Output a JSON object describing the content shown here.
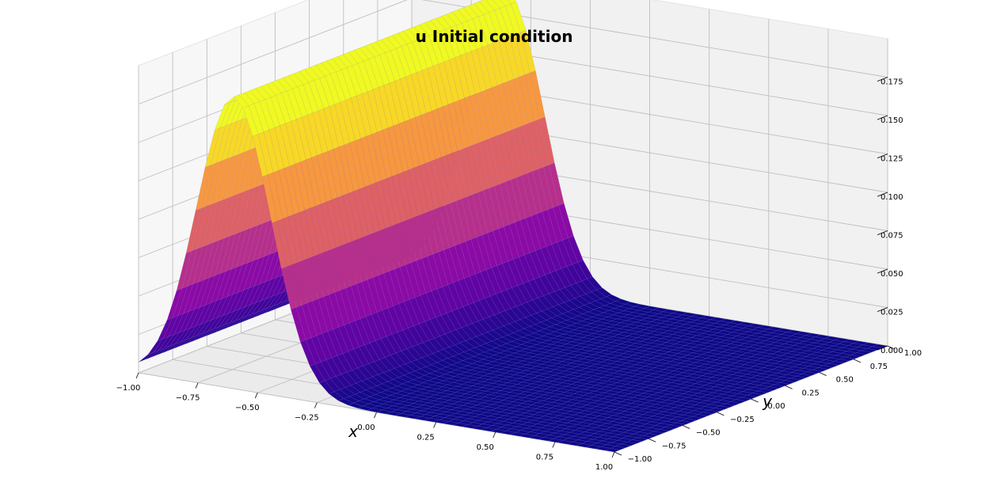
{
  "chart_data": {
    "type": "surface",
    "title": "u Initial condition",
    "xlabel": "x",
    "ylabel": "y",
    "zlabel": "",
    "xlim": [
      -1.0,
      1.0
    ],
    "ylim": [
      -1.0,
      1.0
    ],
    "zlim": [
      0.0,
      0.2
    ],
    "x_ticks": [
      "−1.00",
      "−0.75",
      "−0.50",
      "−0.25",
      "0.00",
      "0.25",
      "0.50",
      "0.75",
      "1.00"
    ],
    "y_ticks": [
      "−1.00",
      "−0.75",
      "−0.50",
      "−0.25",
      "0.00",
      "0.25",
      "0.50",
      "0.75",
      "1.00"
    ],
    "z_ticks": [
      "0.000",
      "0.025",
      "0.050",
      "0.075",
      "0.100",
      "0.125",
      "0.150",
      "0.175"
    ],
    "surface": {
      "function": "gaussian",
      "peak_value": 0.19,
      "peak_x": -0.6,
      "baseline": 0.0,
      "width_x": 0.22,
      "constant_in": "y"
    },
    "colormap": "plasma",
    "grid": true
  }
}
